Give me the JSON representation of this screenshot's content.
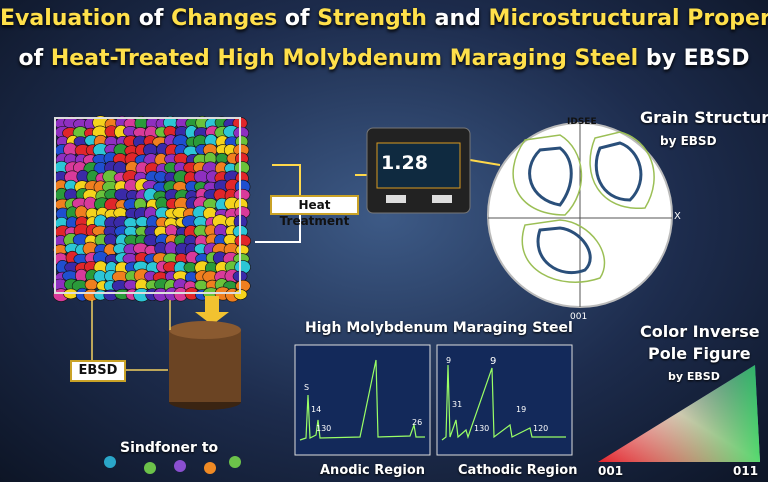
{
  "header": {
    "title_line1": [
      "Evaluation",
      " of ",
      "Changes",
      " of ",
      "Strength",
      " and ",
      "Microstructural Properties"
    ],
    "title_line2": [
      "of ",
      "Heat-Treated High Molybdenum Maraging Steel",
      " by EBSD"
    ]
  },
  "labels": {
    "heat_treatment": "Heat Treatment",
    "ebsd": "EBSD",
    "display_value": "1.28",
    "bottom_left": "Sindfoner to"
  },
  "grain_figure": {
    "title": "Grain Structure",
    "subtitle": "by EBSD",
    "top_label": "IDSEE",
    "axis_label": "X",
    "bottom_label": "001"
  },
  "spectra": {
    "title": "High Molybdenum Maraging Steel",
    "panels": [
      {
        "caption": "Anodic Region",
        "peak_labels": [
          "S",
          "14",
          "130",
          "26"
        ]
      },
      {
        "caption": "Cathodic Region",
        "peak_labels": [
          "9",
          "31",
          "130",
          "19",
          "120"
        ]
      }
    ]
  },
  "pole_figure": {
    "title_line1": "Color Inverse",
    "title_line2": "Pole Figure",
    "subtitle": "by EBSD",
    "corner_left": "001",
    "corner_right": "011"
  }
}
